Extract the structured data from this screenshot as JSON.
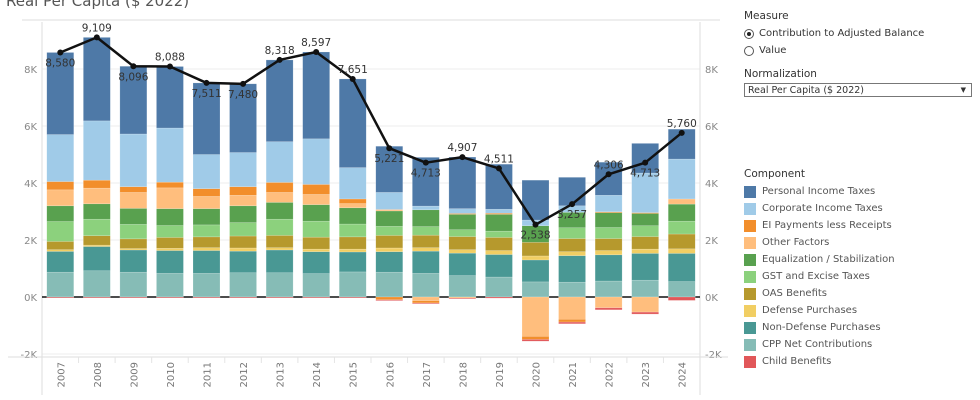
{
  "title": "Real Per Capita ($ 2022)",
  "controls": {
    "measure": {
      "label": "Measure",
      "options": [
        {
          "label": "Contribution to Adjusted Balance",
          "selected": true
        },
        {
          "label": "Value",
          "selected": false
        }
      ]
    },
    "normalization": {
      "label": "Normalization",
      "selected": "Real Per Capita ($ 2022)",
      "caret": "▼"
    }
  },
  "legend": {
    "title": "Component",
    "items": [
      {
        "name": "Personal Income Taxes",
        "color": "#4e79a7"
      },
      {
        "name": "Corporate Income Taxes",
        "color": "#a0cbe8"
      },
      {
        "name": "EI Payments less Receipts",
        "color": "#f28e2b"
      },
      {
        "name": "Other Factors",
        "color": "#ffbe7d"
      },
      {
        "name": "Equalization / Stabilization",
        "color": "#59a14f"
      },
      {
        "name": "GST and Excise Taxes",
        "color": "#8cd17d"
      },
      {
        "name": "OAS Benefits",
        "color": "#b6992d"
      },
      {
        "name": "Defense Purchases",
        "color": "#f1ce63"
      },
      {
        "name": "Non-Defense Purchases",
        "color": "#499894"
      },
      {
        "name": "CPP Net Contributions",
        "color": "#86bcb6"
      },
      {
        "name": "Child Benefits",
        "color": "#e15759"
      }
    ]
  },
  "chart_data": {
    "type": "bar",
    "stacked": true,
    "title": "Real Per Capita ($ 2022)",
    "xlabel": "",
    "ylabel": "",
    "ylim": [
      -2000,
      9300
    ],
    "yticks": [
      -2000,
      0,
      2000,
      4000,
      6000,
      8000
    ],
    "ytick_labels": [
      "-2K",
      "0K",
      "2K",
      "4K",
      "6K",
      "8K"
    ],
    "grid": true,
    "legend_position": "right",
    "categories": [
      "2007",
      "2008",
      "2009",
      "2010",
      "2011",
      "2012",
      "2013",
      "2014",
      "2015",
      "2016",
      "2017",
      "2018",
      "2019",
      "2020",
      "2021",
      "2022",
      "2023",
      "2024"
    ],
    "stack_order": [
      "CPP Net Contributions",
      "Non-Defense Purchases",
      "Defense Purchases",
      "OAS Benefits",
      "GST and Excise Taxes",
      "Equalization / Stabilization",
      "Other Factors",
      "EI Payments less Receipts",
      "Corporate Income Taxes",
      "Personal Income Taxes",
      "Child Benefits"
    ],
    "series": [
      {
        "name": "Personal Income Taxes",
        "values": [
          2880,
          2929,
          2376,
          2158,
          2511,
          2410,
          2868,
          3047,
          3111,
          1620,
          1710,
          1810,
          1580,
          1400,
          1000,
          1160,
          1040,
          1050
        ]
      },
      {
        "name": "Corporate Income Taxes",
        "values": [
          1650,
          2080,
          1850,
          1900,
          1200,
          1200,
          1430,
          1600,
          1100,
          600,
          130,
          170,
          140,
          200,
          230,
          580,
          1390,
          1400
        ]
      },
      {
        "name": "EI Payments less Receipts",
        "values": [
          290,
          280,
          200,
          200,
          270,
          300,
          350,
          350,
          160,
          -100,
          -80,
          30,
          40,
          -110,
          -100,
          30,
          30,
          0
        ]
      },
      {
        "name": "Other Factors",
        "values": [
          560,
          550,
          560,
          730,
          430,
          370,
          350,
          360,
          150,
          50,
          -130,
          -40,
          0,
          -1380,
          -780,
          -380,
          -530,
          180
        ]
      },
      {
        "name": "Equalization / Stabilization",
        "values": [
          550,
          540,
          560,
          590,
          570,
          590,
          590,
          580,
          570,
          540,
          590,
          540,
          590,
          580,
          540,
          520,
          430,
          600
        ]
      },
      {
        "name": "GST and Excise Taxes",
        "values": [
          700,
          580,
          510,
          420,
          420,
          470,
          570,
          560,
          450,
          320,
          300,
          240,
          220,
          0,
          380,
          390,
          380,
          450
        ]
      },
      {
        "name": "OAS Benefits",
        "values": [
          290,
          330,
          340,
          380,
          380,
          420,
          430,
          420,
          430,
          440,
          440,
          460,
          460,
          480,
          460,
          420,
          440,
          520
        ]
      },
      {
        "name": "Defense Purchases",
        "values": [
          60,
          50,
          50,
          80,
          100,
          110,
          80,
          90,
          100,
          130,
          120,
          120,
          140,
          140,
          140,
          150,
          150,
          160
        ]
      },
      {
        "name": "Non-Defense Purchases",
        "values": [
          730,
          850,
          780,
          800,
          800,
          760,
          800,
          770,
          700,
          720,
          780,
          790,
          790,
          770,
          930,
          920,
          940,
          990
        ]
      },
      {
        "name": "CPP Net Contributions",
        "values": [
          870,
          920,
          870,
          830,
          830,
          850,
          850,
          820,
          880,
          870,
          830,
          750,
          700,
          530,
          520,
          560,
          590,
          540
        ]
      },
      {
        "name": "Child Benefits",
        "values": [
          -20,
          -20,
          -20,
          -20,
          -20,
          -20,
          -20,
          -20,
          -20,
          -20,
          -20,
          -20,
          -40,
          -60,
          -60,
          -70,
          -70,
          -120
        ]
      }
    ],
    "line": {
      "name": "Adjusted Balance Total",
      "color": "#111111",
      "values": [
        8580,
        9109,
        8096,
        8088,
        7511,
        7480,
        8318,
        8597,
        7651,
        5221,
        4713,
        4907,
        4511,
        2538,
        3257,
        4306,
        4713,
        5760
      ],
      "labels": [
        "8,580",
        "9,109",
        "8,096",
        "8,088",
        "7,511",
        "7,480",
        "8,318",
        "8,597",
        "7,651",
        "5,221",
        "4,713",
        "4,907",
        "4,511",
        "2,538",
        "3,257",
        "4,306",
        "4,713",
        "5,760"
      ],
      "label_pos": [
        "below",
        "above",
        "below",
        "above",
        "below",
        "below",
        "above",
        "above",
        "above",
        "below",
        "below",
        "above",
        "above",
        "below",
        "below",
        "above",
        "below",
        "above"
      ]
    }
  }
}
